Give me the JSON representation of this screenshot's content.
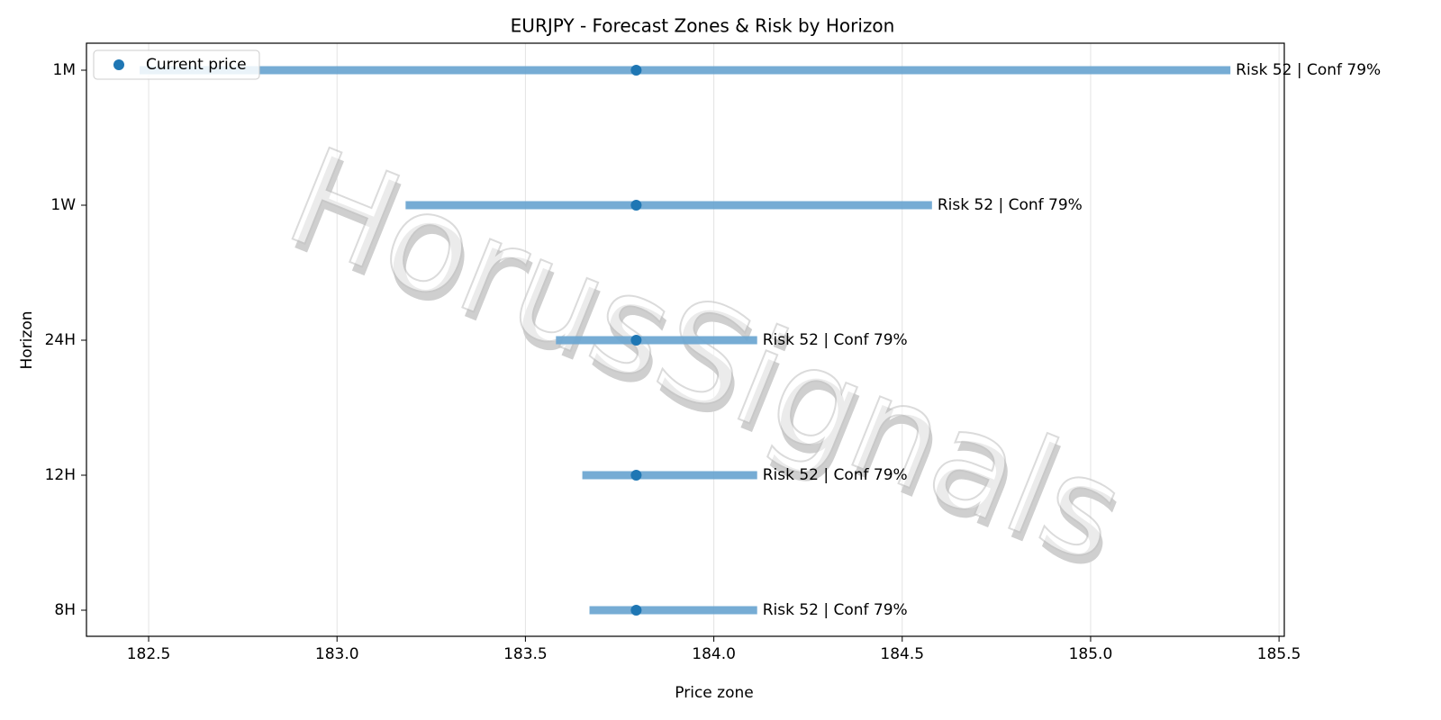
{
  "chart_data": {
    "type": "range",
    "title": "EURJPY - Forecast Zones & Risk by Horizon",
    "x_label": "Price zone",
    "y_label": "Horizon",
    "watermark": "HorusSignals",
    "categories": [
      "1M",
      "1W",
      "24H",
      "12H",
      "8H"
    ],
    "ranges": {
      "color": "#6fa8d2",
      "low": [
        182.476,
        183.182,
        183.581,
        183.651,
        183.67
      ],
      "high": [
        185.371,
        184.579,
        184.115,
        184.115,
        184.115
      ]
    },
    "series": [
      {
        "name": "Current price",
        "color": "#1f77b4",
        "values": [
          183.794,
          183.794,
          183.794,
          183.794,
          183.794
        ]
      }
    ],
    "labels": [
      "Risk 52 | Conf 79%",
      "Risk 52 | Conf 79%",
      "Risk 52 | Conf 79%",
      "Risk 52 | Conf 79%",
      "Risk 52 | Conf 79%"
    ],
    "xlim": [
      182.335,
      185.514
    ],
    "xticks": [
      182.5,
      {
        "value": 183,
        "label": "183.0"
      },
      183.5,
      {
        "value": 184,
        "label": "184.0"
      },
      184.5,
      {
        "value": 185,
        "label": "185.0"
      },
      185.5
    ],
    "grid": true,
    "legend": "upper left"
  }
}
